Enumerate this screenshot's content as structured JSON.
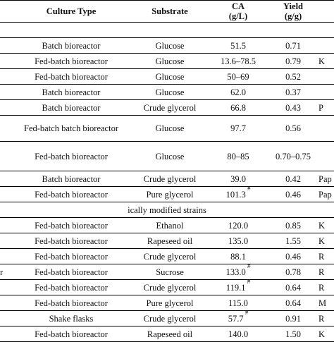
{
  "headers": {
    "culture_type": "Culture Type",
    "substrate": "Substrate",
    "ca": "CA",
    "ca_unit": "(g/L)",
    "yield": "Yield",
    "yield_unit": "(g/g)"
  },
  "section_label": "ically modified strains",
  "rows_a": [
    {
      "org": "",
      "culture": "Batch bioreactor",
      "substrate": "Glucose",
      "ca": "51.5",
      "ca_mark": "",
      "yield": "0.71",
      "ref": ""
    },
    {
      "org": "",
      "culture": "Fed-batch bioreactor",
      "substrate": "Glucose",
      "ca": "13.6–78.5",
      "ca_mark": "",
      "yield": "0.79",
      "ref": "K"
    },
    {
      "org": "",
      "culture": "Fed-batch bioreactor",
      "substrate": "Glucose",
      "ca": "50–69",
      "ca_mark": "",
      "yield": "0.52",
      "ref": ""
    },
    {
      "org": "",
      "culture": "Batch bioreactor",
      "substrate": "Glucose",
      "ca": "62.0",
      "ca_mark": "",
      "yield": "0.37",
      "ref": ""
    },
    {
      "org": "",
      "culture": "Batch bioreactor",
      "substrate": "Crude glycerol",
      "ca": "66.8",
      "ca_mark": "",
      "yield": "0.43",
      "ref": "P"
    },
    {
      "org": "",
      "culture": "Fed-batch batch bioreactor",
      "substrate": "Glucose",
      "ca": "97.7",
      "ca_mark": "",
      "yield": "0.56",
      "ref": ""
    },
    {
      "org": "",
      "culture": "Fed-batch bioreactor",
      "substrate": "Glucose",
      "ca": "80–85",
      "ca_mark": "",
      "yield": "0.70–0.75",
      "ref": ""
    },
    {
      "org": "",
      "culture": "Batch bioreactor",
      "substrate": "Crude glycerol",
      "ca": "39.0",
      "ca_mark": "",
      "yield": "0.42",
      "ref": "Pap"
    },
    {
      "org": "",
      "culture": "Fed-batch bioreactor",
      "substrate": "Pure glycerol",
      "ca": "101.3",
      "ca_mark": "#",
      "yield": "0.46",
      "ref": "Pap"
    }
  ],
  "rows_b": [
    {
      "org": "",
      "culture": "Fed-batch bioreactor",
      "substrate": "Ethanol",
      "ca": "120.0",
      "ca_mark": "",
      "yield": "0.85",
      "ref": "K"
    },
    {
      "org": "",
      "culture": "Fed-batch bioreactor",
      "substrate": "Rapeseed oil",
      "ca": "135.0",
      "ca_mark": "",
      "yield": "1.55",
      "ref": "K"
    },
    {
      "org": "",
      "culture": "Fed-batch bioreactor",
      "substrate": "Crude glycerol",
      "ca": "88.1",
      "ca_mark": "",
      "yield": "0.46",
      "ref": "R"
    },
    {
      "org": "r",
      "culture": "Fed-batch bioreactor",
      "substrate": "Sucrose",
      "ca": "133.0",
      "ca_mark": "#",
      "yield": "0.78",
      "ref": "R"
    },
    {
      "org": "",
      "culture": "Fed-batch bioreactor",
      "substrate": "Crude glycerol",
      "ca": "119.1",
      "ca_mark": "#",
      "yield": "0.64",
      "ref": "R"
    },
    {
      "org": "",
      "culture": "Fed-batch bioreactor",
      "substrate": "Pure glycerol",
      "ca": "115.0",
      "ca_mark": "",
      "yield": "0.64",
      "ref": "M"
    },
    {
      "org": "",
      "culture": "Shake flasks",
      "substrate": "Crude glycerol",
      "ca": "57.7",
      "ca_mark": "#",
      "yield": "0.91",
      "ref": "R"
    },
    {
      "org": "",
      "culture": "Fed-batch bioreactor",
      "substrate": "Rapeseed oil",
      "ca": "140.0",
      "ca_mark": "",
      "yield": "1.50",
      "ref": "K"
    }
  ]
}
